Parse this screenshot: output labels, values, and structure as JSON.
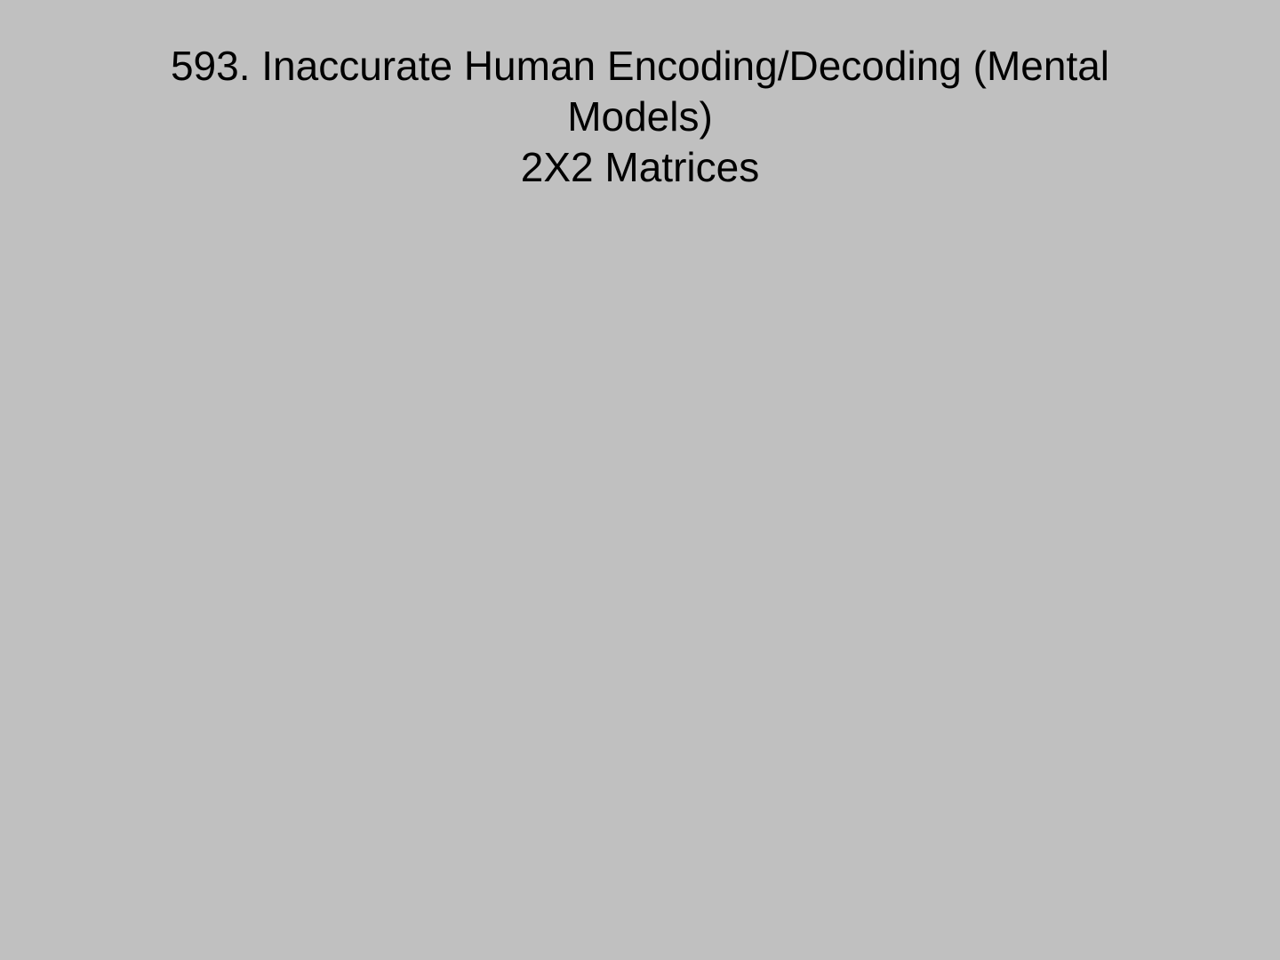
{
  "slide": {
    "background_color": "#c0c0c0",
    "text_color": "#000000",
    "title_lines": [
      "593. Inaccurate Human Encoding/Decoding (Mental",
      "Models)",
      "2X2 Matrices"
    ]
  }
}
